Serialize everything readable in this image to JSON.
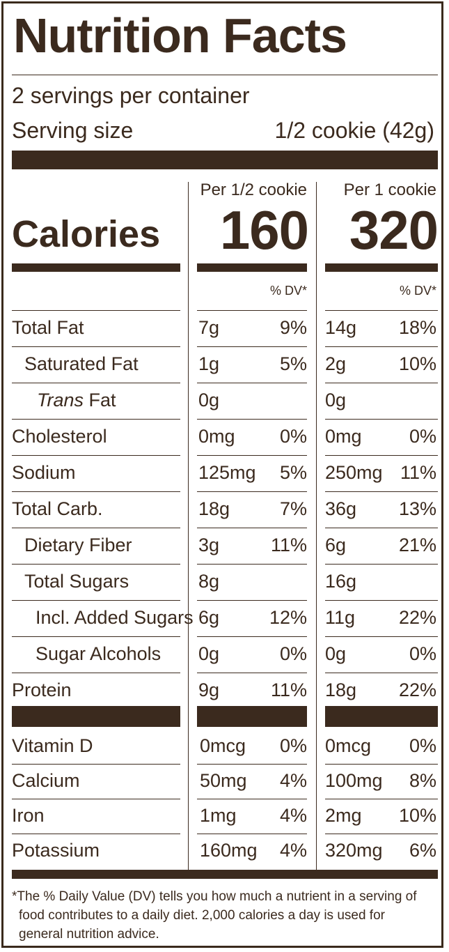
{
  "title": "Nutrition Facts",
  "servings_per_container": "2 servings per container",
  "serving_size_label": "Serving size",
  "serving_size_value": "1/2 cookie (42g)",
  "calories_label": "Calories",
  "columns": [
    {
      "header": "Per 1/2 cookie",
      "calories": "160",
      "dv_header": "% DV*"
    },
    {
      "header": "Per 1 cookie",
      "calories": "320",
      "dv_header": "% DV*"
    }
  ],
  "nutrients": [
    {
      "name": "Total Fat",
      "c1_amt": "7g",
      "c1_dv": "9%",
      "c2_amt": "14g",
      "c2_dv": "18%"
    },
    {
      "name": "Saturated Fat",
      "c1_amt": "1g",
      "c1_dv": "5%",
      "c2_amt": "2g",
      "c2_dv": "10%"
    },
    {
      "name_italic": "Trans",
      "name_rest": " Fat",
      "c1_amt": "0g",
      "c1_dv": "",
      "c2_amt": "0g",
      "c2_dv": ""
    },
    {
      "name": "Cholesterol",
      "c1_amt": "0mg",
      "c1_dv": "0%",
      "c2_amt": "0mg",
      "c2_dv": "0%"
    },
    {
      "name": "Sodium",
      "c1_amt": "125mg",
      "c1_dv": "5%",
      "c2_amt": "250mg",
      "c2_dv": "11%"
    },
    {
      "name": "Total Carb.",
      "c1_amt": "18g",
      "c1_dv": "7%",
      "c2_amt": "36g",
      "c2_dv": "13%"
    },
    {
      "name": "Dietary Fiber",
      "c1_amt": "3g",
      "c1_dv": "11%",
      "c2_amt": "6g",
      "c2_dv": "21%"
    },
    {
      "name": "Total Sugars",
      "c1_amt": "8g",
      "c1_dv": "",
      "c2_amt": "16g",
      "c2_dv": ""
    },
    {
      "name": "Incl. Added Sugars",
      "c1_amt": "6g",
      "c1_dv": "12%",
      "c2_amt": "11g",
      "c2_dv": "22%"
    },
    {
      "name": "Sugar Alcohols",
      "c1_amt": "0g",
      "c1_dv": "0%",
      "c2_amt": "0g",
      "c2_dv": "0%"
    },
    {
      "name": "Protein",
      "c1_amt": "9g",
      "c1_dv": "11%",
      "c2_amt": "18g",
      "c2_dv": "22%"
    }
  ],
  "vitamins": [
    {
      "name": "Vitamin D",
      "c1_amt": "0mcg",
      "c1_dv": "0%",
      "c2_amt": "0mcg",
      "c2_dv": "0%"
    },
    {
      "name": "Calcium",
      "c1_amt": "50mg",
      "c1_dv": "4%",
      "c2_amt": "100mg",
      "c2_dv": "8%"
    },
    {
      "name": "Iron",
      "c1_amt": "1mg",
      "c1_dv": "4%",
      "c2_amt": "2mg",
      "c2_dv": "10%"
    },
    {
      "name": "Potassium",
      "c1_amt": "160mg",
      "c1_dv": "4%",
      "c2_amt": "320mg",
      "c2_dv": "6%"
    }
  ],
  "footnote": [
    "*The % Daily Value (DV) tells you how much a nutrient in a serving of",
    "food contributes to a daily diet. 2,000 calories a day is used for",
    "general nutrition advice."
  ],
  "colors": {
    "ink": "#3b2a1e",
    "background": "#ffffff"
  }
}
